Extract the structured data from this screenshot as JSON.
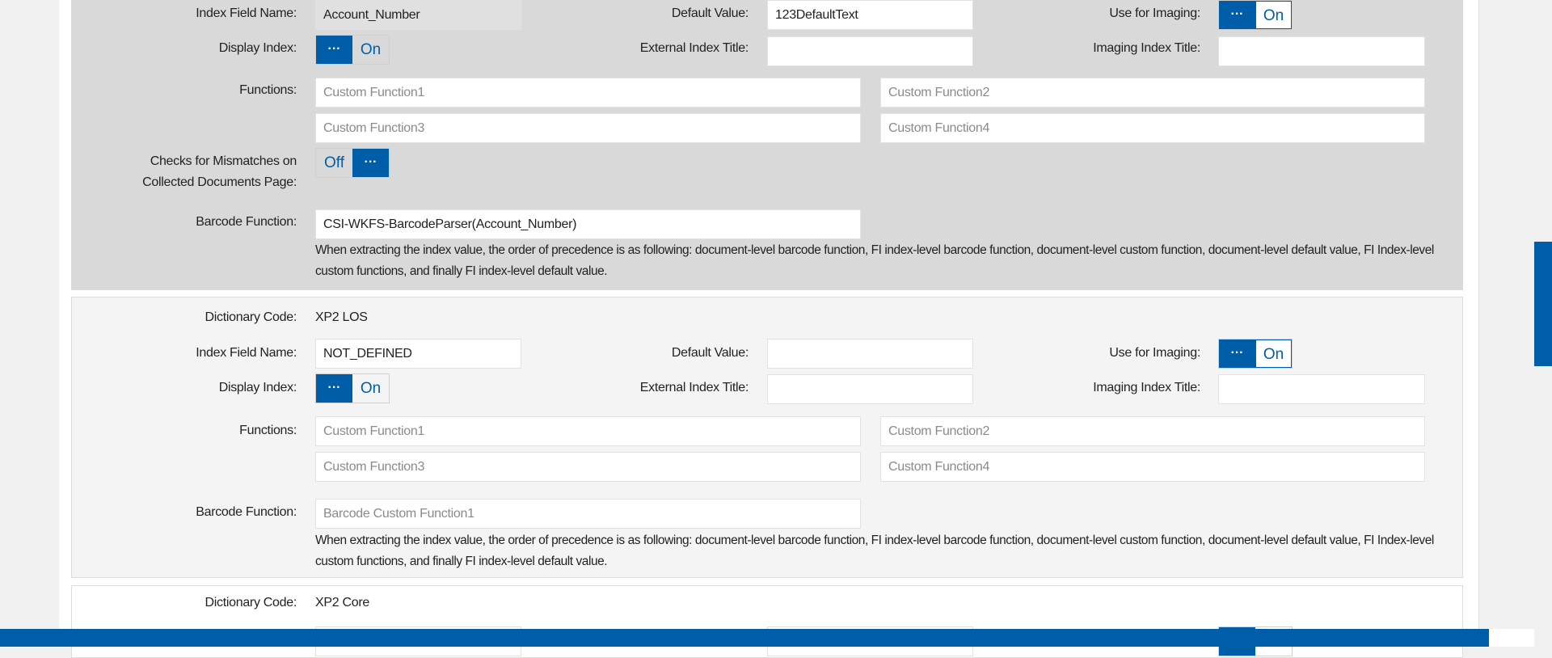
{
  "panels": [
    {
      "index_field_name_label": "Index Field Name:",
      "index_field_name": "Account_Number",
      "default_value_label": "Default Value:",
      "default_value": "123DefaultText",
      "use_for_imaging_label": "Use for Imaging:",
      "use_for_imaging": "On",
      "display_index_label": "Display Index:",
      "display_index": "On",
      "external_index_title_label": "External Index Title:",
      "external_index_title": "",
      "imaging_index_title_label": "Imaging Index Title:",
      "imaging_index_title": "",
      "functions_label": "Functions:",
      "functions_placeholders": [
        "Custom Function1",
        "Custom Function2",
        "Custom Function3",
        "Custom Function4"
      ],
      "checks_label_line1": "Checks for Mismatches on",
      "checks_label_line2": "Collected Documents Page:",
      "checks_value": "Off",
      "barcode_function_label": "Barcode Function:",
      "barcode_function": "CSI-WKFS-BarcodeParser(Account_Number)",
      "note": "When extracting the index value, the order of precedence is as following: document-level barcode function, FI index-level barcode function, document-level custom function, document-level default value, FI Index-level custom functions, and finally FI index-level default value."
    },
    {
      "dictionary_code_label": "Dictionary Code:",
      "dictionary_code": "XP2 LOS",
      "index_field_name_label": "Index Field Name:",
      "index_field_name": "NOT_DEFINED",
      "default_value_label": "Default Value:",
      "default_value": "",
      "use_for_imaging_label": "Use for Imaging:",
      "use_for_imaging": "On",
      "display_index_label": "Display Index:",
      "display_index": "On",
      "external_index_title_label": "External Index Title:",
      "imaging_index_title_label": "Imaging Index Title:",
      "functions_label": "Functions:",
      "functions_placeholders": [
        "Custom Function1",
        "Custom Function2",
        "Custom Function3",
        "Custom Function4"
      ],
      "barcode_function_label": "Barcode Function:",
      "barcode_placeholder": "Barcode Custom Function1",
      "note": "When extracting the index value, the order of precedence is as following: document-level barcode function, FI index-level barcode function, document-level custom function, document-level default value, FI Index-level custom functions, and finally FI index-level default value."
    },
    {
      "dictionary_code_label": "Dictionary Code:",
      "dictionary_code": "XP2 Core"
    }
  ],
  "colors": {
    "accent": "#005ea8",
    "panel_active": "#d9d9d9",
    "panel": "#f4f4f4"
  },
  "icons": {
    "toggle_handle": "ellipsis-icon"
  }
}
